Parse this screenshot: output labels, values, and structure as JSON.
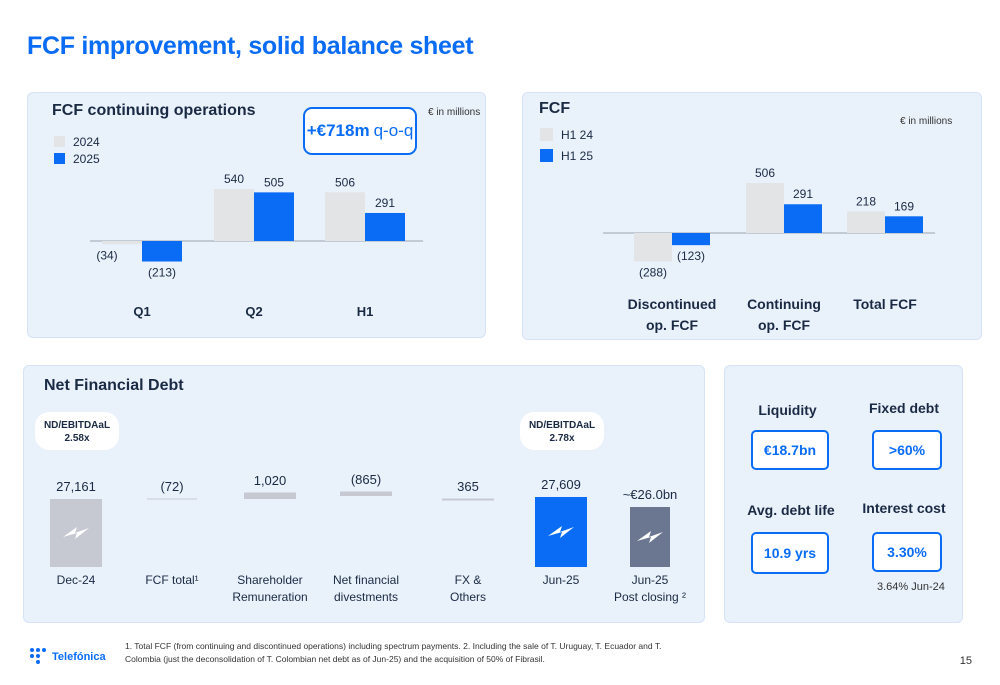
{
  "page": {
    "title": "FCF improvement, solid balance sheet",
    "page_number": "15",
    "footnote": "1. Total FCF (from continuing and discontinued operations) including spectrum payments. 2. Including the sale of T. Uruguay, T. Ecuador and T. Colombia (just the deconsolidation of T. Colombian net debt as of Jun-25) and the acquisition of 50% of Fibrasil.",
    "logo_text": "Telefónica"
  },
  "colors": {
    "accent": "#0a6cf5",
    "grey_bar": "#e3e4e5",
    "dark_bar": "#6b7790",
    "net_debt_grey": "#c6c9d1"
  },
  "panel1": {
    "title": "FCF continuing operations",
    "unit_note": "€ in millions",
    "badge_bold": "+€718m",
    "badge_rest": "q-o-q",
    "legend": [
      "2024",
      "2025"
    ]
  },
  "panel2": {
    "title": "FCF",
    "unit_note": "€ in millions",
    "legend": [
      "H1 24",
      "H1 25"
    ]
  },
  "panel3": {
    "title": "Net Financial Debt",
    "ratio_left": {
      "label": "ND/EBITDAaL",
      "value": "2.58x"
    },
    "ratio_right": {
      "label": "ND/EBITDAaL",
      "value": "2.78x"
    }
  },
  "panel4": {
    "liquidity": {
      "label": "Liquidity",
      "value": "€18.7bn"
    },
    "fixed_debt": {
      "label": "Fixed debt",
      "value": ">60%"
    },
    "avg_debt_life": {
      "label": "Avg. debt life",
      "value": "10.9 yrs"
    },
    "interest_cost": {
      "label": "Interest cost",
      "value": "3.30%",
      "note": "3.64% Jun-24"
    }
  },
  "chart_data": [
    {
      "type": "bar",
      "title": "FCF continuing operations",
      "categories": [
        "Q1",
        "Q2",
        "H1"
      ],
      "series": [
        {
          "name": "2024",
          "values": [
            -34,
            540,
            506
          ],
          "labels": [
            "(34)",
            "540",
            "506"
          ],
          "color": "#e3e4e5"
        },
        {
          "name": "2025",
          "values": [
            -213,
            505,
            291
          ],
          "labels": [
            "(213)",
            "505",
            "291"
          ],
          "color": "#0a6cf5"
        }
      ]
    },
    {
      "type": "bar",
      "title": "FCF",
      "categories": [
        "Discontinued op. FCF",
        "Continuing op. FCF",
        "Total FCF"
      ],
      "category_lines": [
        [
          "Discontinued",
          "op. FCF"
        ],
        [
          "Continuing",
          "op. FCF"
        ],
        [
          "Total FCF"
        ]
      ],
      "series": [
        {
          "name": "H1 24",
          "values": [
            -288,
            506,
            218
          ],
          "labels": [
            "(288)",
            "506",
            "218"
          ],
          "color": "#e3e4e5"
        },
        {
          "name": "H1 25",
          "values": [
            -123,
            291,
            169
          ],
          "labels": [
            "(123)",
            "291",
            "169"
          ],
          "color": "#0a6cf5"
        }
      ]
    },
    {
      "type": "bar",
      "title": "Net Financial Debt",
      "subtype": "waterfall",
      "categories": [
        "Dec-24",
        "FCF total¹",
        "Shareholder Remuneration",
        "Net financial divestments",
        "FX & Others",
        "Jun-25",
        "Jun-25 Post closing ²"
      ],
      "category_lines": [
        [
          "Dec-24"
        ],
        [
          "FCF total¹"
        ],
        [
          "Shareholder",
          "Remuneration"
        ],
        [
          "Net financial",
          "divestments"
        ],
        [
          "FX &",
          "Others"
        ],
        [
          "Jun-25"
        ],
        [
          "Jun-25",
          "Post closing ²"
        ]
      ],
      "values": [
        27161,
        -72,
        1020,
        -865,
        365,
        27609,
        26000
      ],
      "labels": [
        "27,161",
        "(72)",
        "1,020",
        "(865)",
        "365",
        "27,609",
        "~€26.0bn"
      ],
      "kinds": [
        "total",
        "delta",
        "delta",
        "delta",
        "delta",
        "total",
        "total"
      ]
    }
  ]
}
